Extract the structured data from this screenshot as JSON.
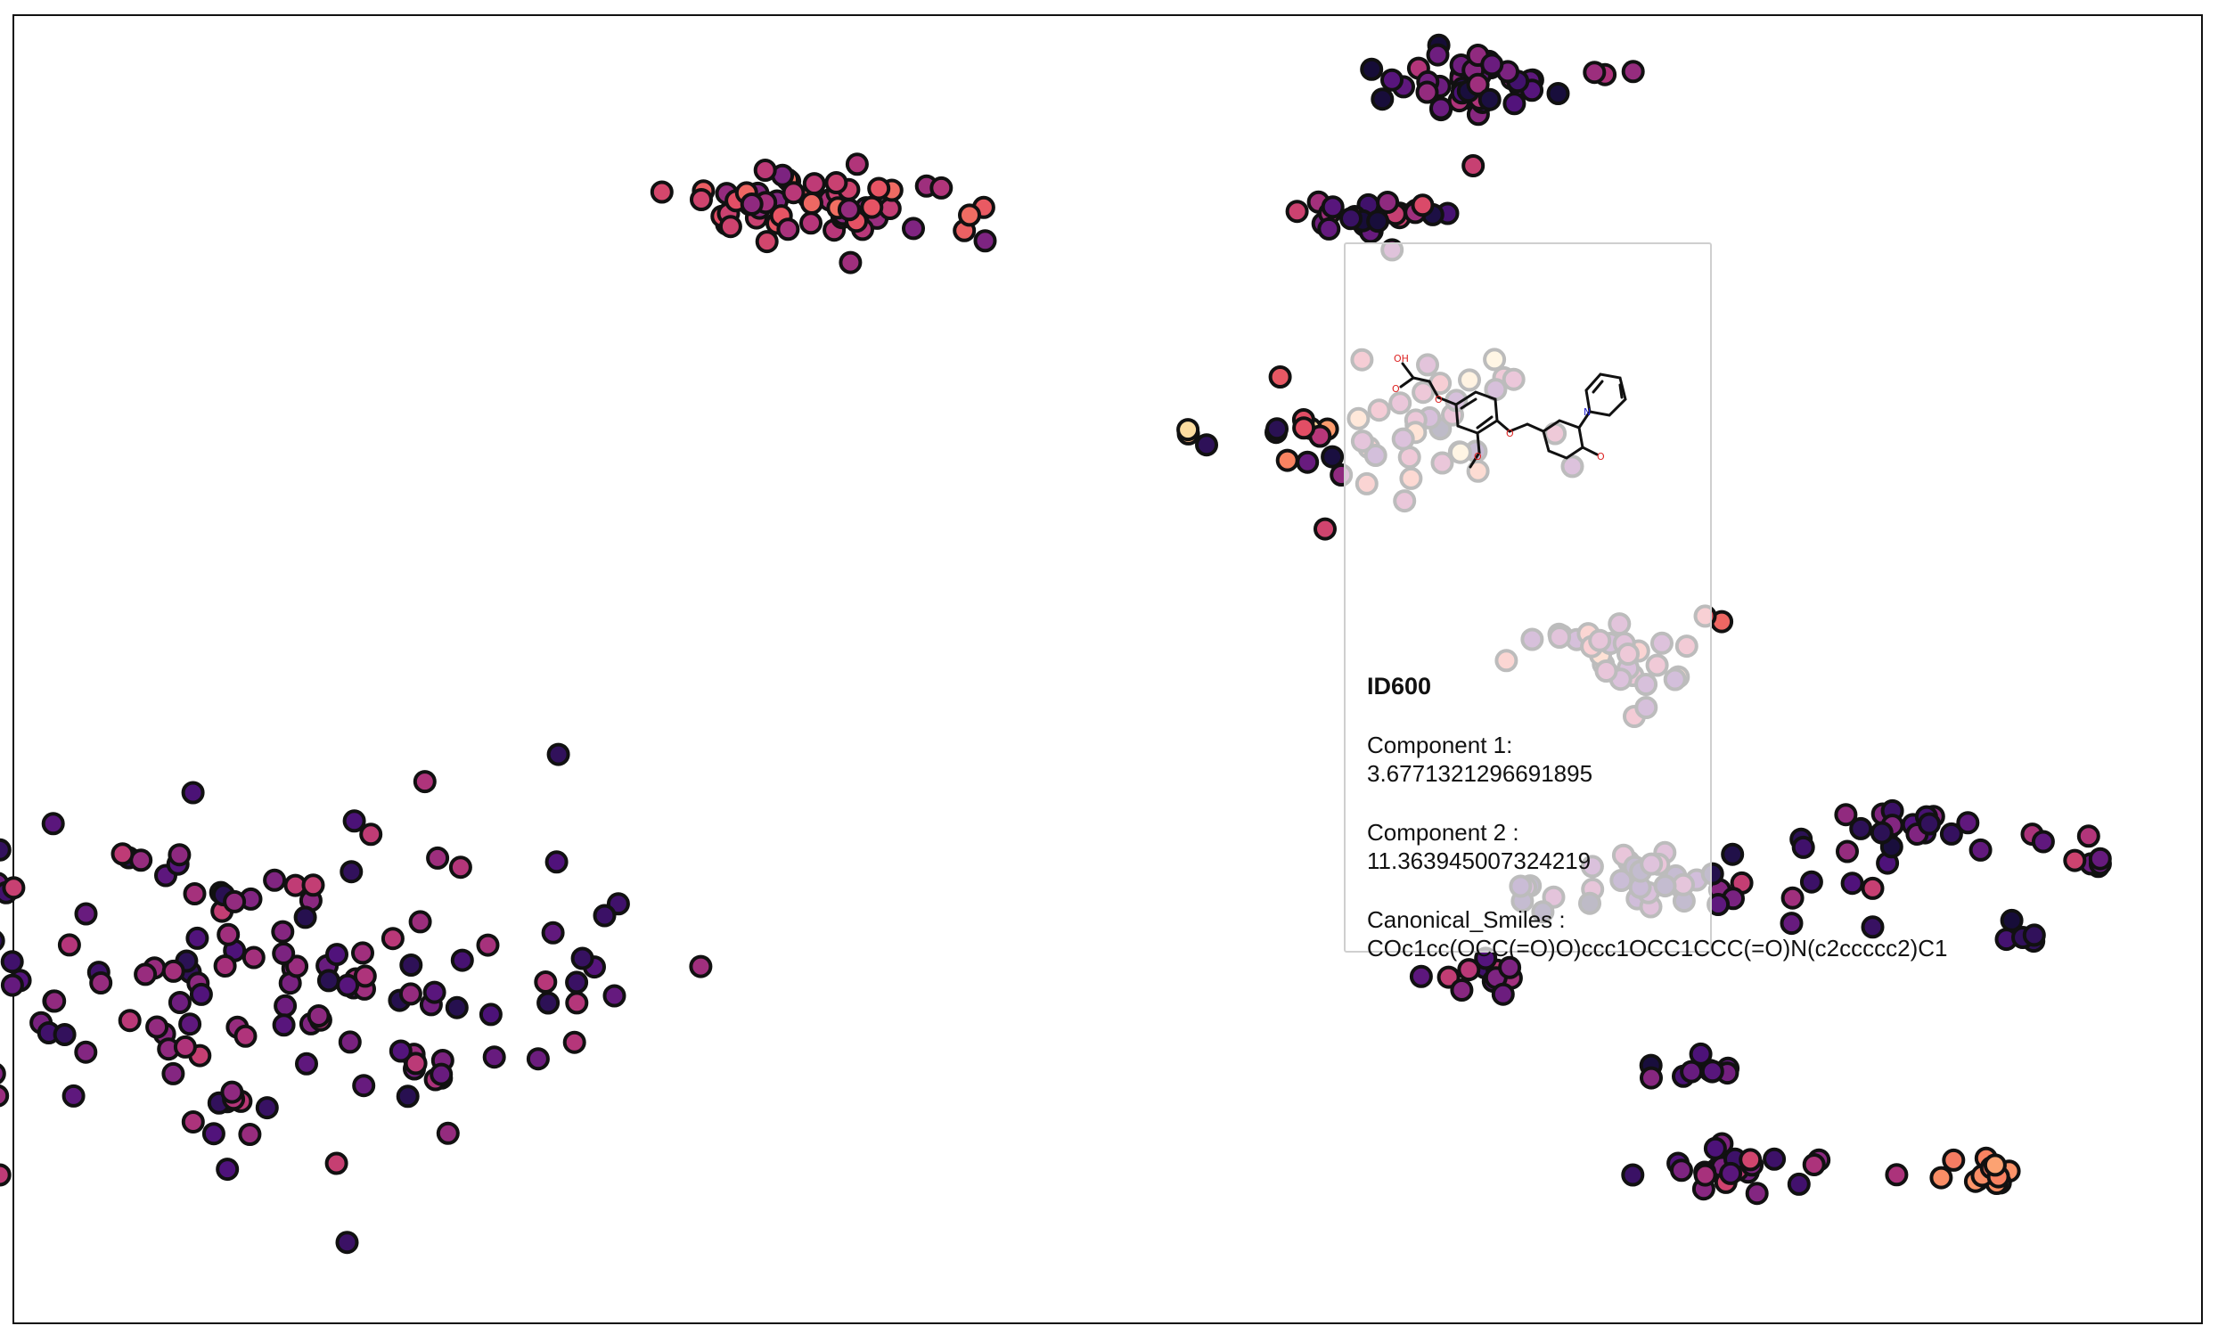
{
  "chart_data": {
    "type": "scatter",
    "title": "",
    "xlabel": "",
    "ylabel": "",
    "grid": false,
    "legend": "none",
    "point_style": {
      "edge_color": "#111111",
      "colormap": "magma"
    },
    "xlim": [
      -11,
      11
    ],
    "ylim": [
      -9,
      14
    ],
    "clusters": [
      {
        "name": "",
        "center": [
          -8.5,
          -3.2
        ],
        "spread": [
          3.2,
          2.6
        ],
        "count": 150,
        "cmin": 0.15,
        "cmax": 0.55
      },
      {
        "name": "",
        "center": [
          -2.9,
          10.6
        ],
        "spread": [
          1.5,
          0.6
        ],
        "count": 60,
        "cmin": 0.35,
        "cmax": 0.7
      },
      {
        "name": "",
        "center": [
          3.8,
          12.8
        ],
        "spread": [
          0.9,
          0.5
        ],
        "count": 45,
        "cmin": 0.1,
        "cmax": 0.5
      },
      {
        "name": "",
        "center": [
          2.5,
          10.4
        ],
        "spread": [
          1.0,
          0.4
        ],
        "count": 25,
        "cmin": 0.1,
        "cmax": 0.6
      },
      {
        "name": "",
        "center": [
          2.7,
          6.7
        ],
        "spread": [
          1.6,
          1.2
        ],
        "count": 50,
        "cmin": 0.1,
        "cmax": 0.95
      },
      {
        "name": "",
        "center": [
          5.1,
          2.8
        ],
        "spread": [
          0.9,
          1.0
        ],
        "count": 30,
        "cmin": 0.3,
        "cmax": 0.8
      },
      {
        "name": "",
        "center": [
          5.9,
          -1.3
        ],
        "spread": [
          1.8,
          0.7
        ],
        "count": 40,
        "cmin": 0.1,
        "cmax": 0.55
      },
      {
        "name": "",
        "center": [
          7.9,
          -0.3
        ],
        "spread": [
          1.0,
          0.4
        ],
        "count": 20,
        "cmin": 0.1,
        "cmax": 0.45
      },
      {
        "name": "",
        "center": [
          4.0,
          -2.9
        ],
        "spread": [
          0.6,
          0.4
        ],
        "count": 12,
        "cmin": 0.2,
        "cmax": 0.55
      },
      {
        "name": "",
        "center": [
          6.3,
          -6.3
        ],
        "spread": [
          0.9,
          0.35
        ],
        "count": 25,
        "cmin": 0.2,
        "cmax": 0.6
      },
      {
        "name": "",
        "center": [
          8.8,
          -6.4
        ],
        "spread": [
          0.3,
          0.25
        ],
        "count": 14,
        "cmin": 0.72,
        "cmax": 0.82
      },
      {
        "name": "",
        "center": [
          9.2,
          -2.2
        ],
        "spread": [
          0.25,
          0.2
        ],
        "count": 5,
        "cmin": 0.1,
        "cmax": 0.3
      },
      {
        "name": "",
        "center": [
          9.8,
          -0.8
        ],
        "spread": [
          0.4,
          0.4
        ],
        "count": 8,
        "cmin": 0.25,
        "cmax": 0.6
      },
      {
        "name": "",
        "center": [
          5.8,
          -4.6
        ],
        "spread": [
          0.5,
          0.3
        ],
        "count": 10,
        "cmin": 0.1,
        "cmax": 0.4
      }
    ],
    "highlighted_point": {
      "id": "ID600",
      "x": 3.6771321296691895,
      "y": 11.363945007324219
    }
  },
  "tooltip": {
    "id": "ID600",
    "component1_label": "Component 1:",
    "component1_value": "3.6771321296691895",
    "component2_label": "Component 2 :",
    "component2_value": "11.363945007324219",
    "smiles_label": "Canonical_Smiles :",
    "smiles_value": "COc1cc(OCC(=O)O)ccc1OCC1CCC(=O)N(c2ccccc2)C1",
    "molecule_atom_oh": "OH",
    "molecule_atom_o": "O",
    "molecule_atom_n": "N"
  }
}
